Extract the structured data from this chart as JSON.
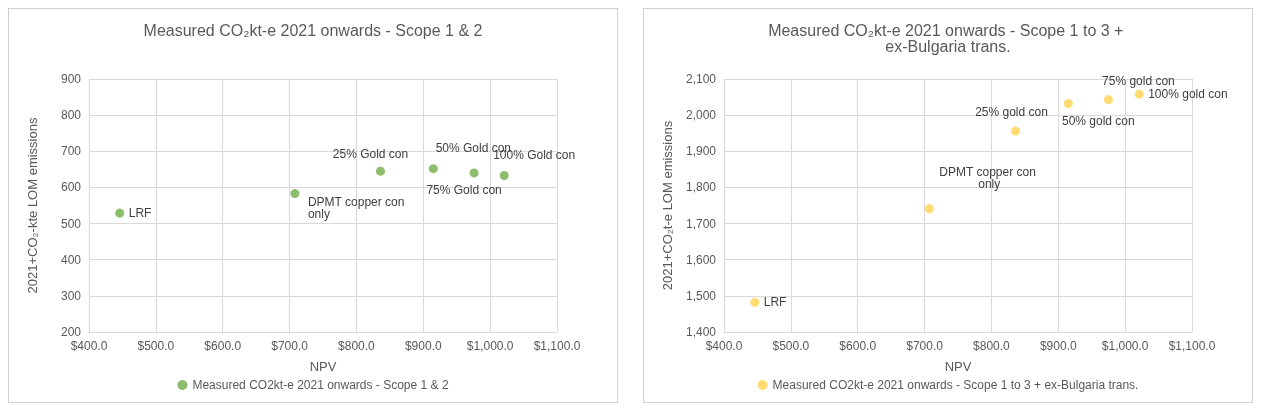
{
  "chart_data": [
    {
      "type": "scatter",
      "title": "Measured CO₂kt-e 2021 onwards - Scope 1 & 2",
      "xlabel": "NPV",
      "ylabel": "2021+CO₂-kte LOM emissions",
      "xlim": [
        400,
        1100
      ],
      "xticks": [
        {
          "value": 400,
          "label": "$400.0"
        },
        {
          "value": 500,
          "label": "$500.0"
        },
        {
          "value": 600,
          "label": "$600.0"
        },
        {
          "value": 700,
          "label": "$700.0"
        },
        {
          "value": 800,
          "label": "$800.0"
        },
        {
          "value": 900,
          "label": "$900.0"
        },
        {
          "value": 1000,
          "label": "$1,000.0"
        },
        {
          "value": 1100,
          "label": "$1,100.0"
        }
      ],
      "ylim": [
        200,
        900
      ],
      "yticks": [
        200,
        300,
        400,
        500,
        600,
        700,
        800,
        900
      ],
      "series": [
        {
          "name": "Measured CO2kt-e 2021 onwards - Scope 1 & 2",
          "color": "#70ad47",
          "x": [
            446,
            708,
            836,
            915,
            976,
            1021
          ],
          "values": [
            529,
            583,
            645,
            652,
            640,
            633
          ]
        }
      ],
      "annotations": [
        {
          "text": "LRF",
          "x": 446,
          "y": 529
        },
        {
          "text": "DPMT copper con only",
          "x": 708,
          "y": 583
        },
        {
          "text": "25% Gold con",
          "x": 836,
          "y": 645
        },
        {
          "text": "50% Gold con",
          "x": 915,
          "y": 652
        },
        {
          "text": "75% Gold con",
          "x": 976,
          "y": 640
        },
        {
          "text": "100% Gold con",
          "x": 1021,
          "y": 633
        }
      ],
      "grid": true,
      "legend": "bottom",
      "marker": "circle"
    },
    {
      "type": "scatter",
      "title": "Measured CO₂kt-e 2021 onwards - Scope 1 to 3 + ex-Bulgaria trans.",
      "xlabel": "NPV",
      "ylabel": "2021+CO₂t-e LOM emissions",
      "xlim": [
        400,
        1100
      ],
      "xticks": [
        {
          "value": 400,
          "label": "$400.0"
        },
        {
          "value": 500,
          "label": "$500.0"
        },
        {
          "value": 600,
          "label": "$600.0"
        },
        {
          "value": 700,
          "label": "$700.0"
        },
        {
          "value": 800,
          "label": "$800.0"
        },
        {
          "value": 900,
          "label": "$900.0"
        },
        {
          "value": 1000,
          "label": "$1,000.0"
        },
        {
          "value": 1100,
          "label": "$1,100.0"
        }
      ],
      "ylim": [
        1400,
        2100
      ],
      "yticks": [
        {
          "value": 1400,
          "label": "1,400"
        },
        {
          "value": 1500,
          "label": "1,500"
        },
        {
          "value": 1600,
          "label": "1,600"
        },
        {
          "value": 1700,
          "label": "1,700"
        },
        {
          "value": 1800,
          "label": "1,800"
        },
        {
          "value": 1900,
          "label": "1,900"
        },
        {
          "value": 2000,
          "label": "2,000"
        },
        {
          "value": 2100,
          "label": "2,100"
        }
      ],
      "series": [
        {
          "name": "Measured CO2kt-e 2021 onwards - Scope 1 to 3 + ex-Bulgaria trans.",
          "color": "#ffd24d",
          "x": [
            446,
            707,
            836,
            915,
            975,
            1021
          ],
          "values": [
            1482,
            1741,
            1956,
            2032,
            2043,
            2058
          ]
        }
      ],
      "annotations": [
        {
          "text": "LRF",
          "x": 446,
          "y": 1482
        },
        {
          "text": "DPMT copper con only",
          "x": 707,
          "y": 1741
        },
        {
          "text": "25% gold con",
          "x": 836,
          "y": 1956
        },
        {
          "text": "50% gold con",
          "x": 915,
          "y": 2032
        },
        {
          "text": "75% gold con",
          "x": 975,
          "y": 2043
        },
        {
          "text": "100% gold con",
          "x": 1021,
          "y": 2058
        }
      ],
      "grid": true,
      "legend": "bottom",
      "marker": "circle"
    }
  ]
}
